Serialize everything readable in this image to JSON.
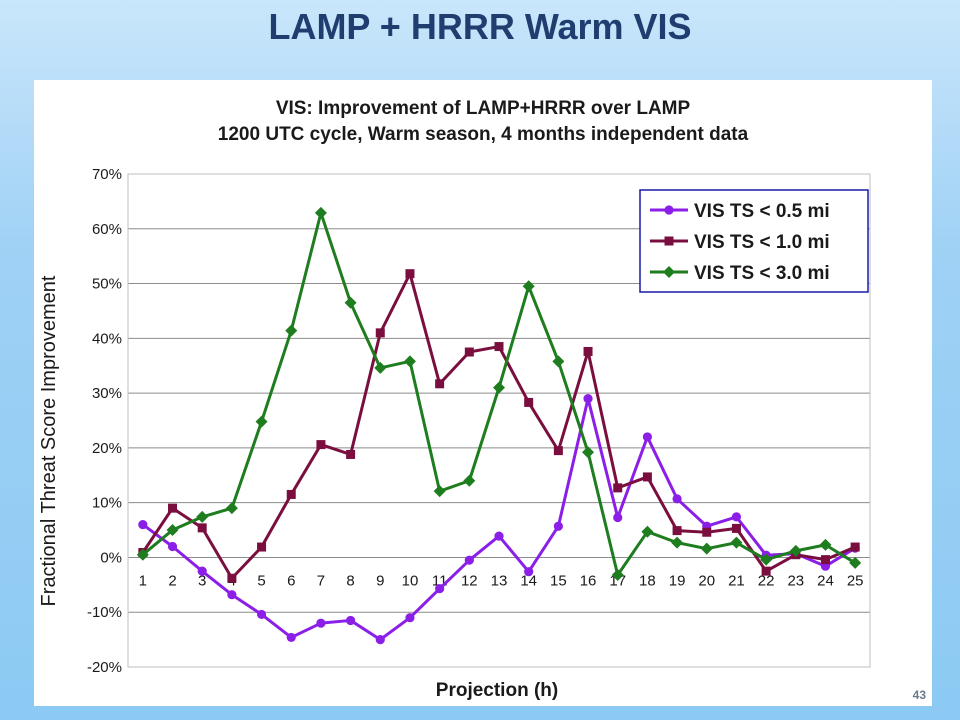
{
  "slide": {
    "title": "LAMP + HRRR Warm VIS",
    "page_number": "43"
  },
  "chart_data": {
    "type": "line",
    "title": "VIS: Improvement of LAMP+HRRR over LAMP",
    "subtitle": "1200 UTC cycle, Warm season, 4 months independent data",
    "xlabel": "Projection (h)",
    "ylabel": "Fractional Threat Score Improvement",
    "categories": [
      "1",
      "2",
      "3",
      "4",
      "5",
      "6",
      "7",
      "8",
      "9",
      "10",
      "11",
      "12",
      "13",
      "14",
      "15",
      "16",
      "17",
      "18",
      "19",
      "20",
      "21",
      "22",
      "23",
      "24",
      "25"
    ],
    "ylim": [
      -20,
      70
    ],
    "y_ticks": [
      -20,
      -10,
      0,
      10,
      20,
      30,
      40,
      50,
      60,
      70
    ],
    "y_tick_labels": [
      "-20%",
      "-10%",
      "0%",
      "10%",
      "20%",
      "30%",
      "40%",
      "50%",
      "60%",
      "70%"
    ],
    "grid": true,
    "legend_position": "top-right",
    "series": [
      {
        "name": "VIS TS < 0.5 mi",
        "color": "#8b1fe8",
        "marker": "circle",
        "values": [
          6,
          2,
          -2.5,
          -6.8,
          -10.4,
          -14.6,
          -12,
          -11.5,
          -15,
          -11,
          -5.7,
          -0.5,
          3.9,
          -2.6,
          5.7,
          29,
          7.3,
          22,
          10.7,
          5.7,
          7.4,
          0.4,
          0.7,
          -1.6,
          1.7
        ]
      },
      {
        "name": "VIS TS < 1.0 mi",
        "color": "#7a0f3f",
        "marker": "square",
        "values": [
          0.9,
          9,
          5.4,
          -3.8,
          1.9,
          11.5,
          20.6,
          18.8,
          41,
          51.8,
          31.7,
          37.5,
          38.5,
          28.3,
          19.5,
          37.6,
          12.7,
          14.7,
          4.9,
          4.6,
          5.3,
          -2.5,
          0.5,
          -0.4,
          1.9
        ]
      },
      {
        "name": "VIS TS < 3.0 mi",
        "color": "#1e7d1e",
        "marker": "diamond",
        "values": [
          0.5,
          5,
          7.4,
          9,
          24.8,
          41.4,
          62.9,
          46.5,
          34.6,
          35.8,
          12.1,
          14,
          31,
          49.5,
          35.8,
          19.2,
          -3.2,
          4.7,
          2.7,
          1.6,
          2.7,
          -0.4,
          1.2,
          2.3,
          -1
        ]
      }
    ]
  }
}
